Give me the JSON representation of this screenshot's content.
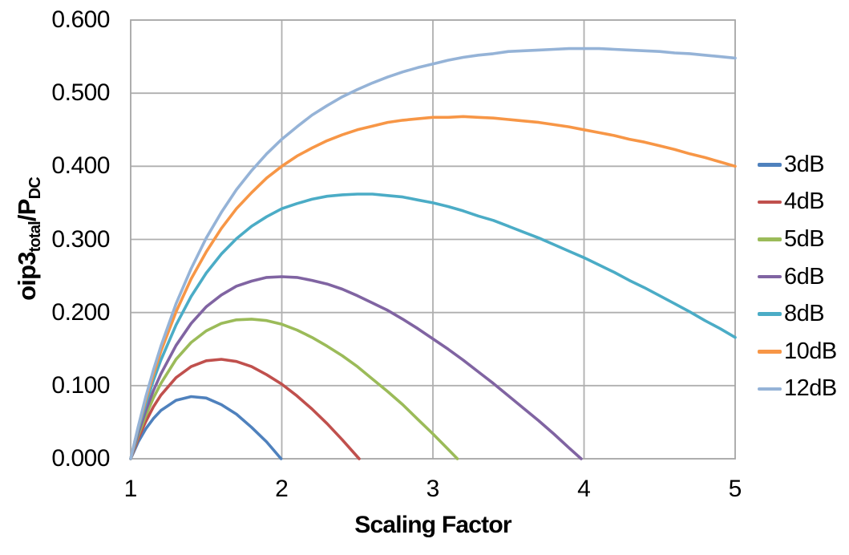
{
  "chart_data": {
    "type": "line",
    "title": "",
    "xlabel": "Scaling Factor",
    "ylabel": "oip3_total/P_DC",
    "ylabel_parts": [
      {
        "text": "oip3",
        "sub": false
      },
      {
        "text": "total",
        "sub": true
      },
      {
        "text": "/P",
        "sub": false
      },
      {
        "text": "DC",
        "sub": true
      }
    ],
    "xlim": [
      1,
      5
    ],
    "ylim": [
      0,
      0.6
    ],
    "x_ticks": [
      1,
      2,
      3,
      4,
      5
    ],
    "x_tick_labels": [
      "1",
      "2",
      "3",
      "4",
      "5"
    ],
    "y_ticks": [
      0,
      0.1,
      0.2,
      0.3,
      0.4,
      0.5,
      0.6
    ],
    "y_tick_labels": [
      "0.000",
      "0.100",
      "0.200",
      "0.300",
      "0.400",
      "0.500",
      "0.600"
    ],
    "grid": true,
    "legend_position": "right",
    "series": [
      {
        "name": "3dB",
        "color": "#4F81BD",
        "points": [
          [
            1,
            0
          ],
          [
            1.05,
            0.023
          ],
          [
            1.1,
            0.041
          ],
          [
            1.15,
            0.055
          ],
          [
            1.2,
            0.066
          ],
          [
            1.3,
            0.08
          ],
          [
            1.4,
            0.085
          ],
          [
            1.5,
            0.083
          ],
          [
            1.6,
            0.074
          ],
          [
            1.7,
            0.061
          ],
          [
            1.8,
            0.043
          ],
          [
            1.9,
            0.023
          ],
          [
            1.995,
            0
          ]
        ]
      },
      {
        "name": "4dB",
        "color": "#C0504D",
        "points": [
          [
            1,
            0
          ],
          [
            1.05,
            0.028
          ],
          [
            1.1,
            0.051
          ],
          [
            1.15,
            0.071
          ],
          [
            1.2,
            0.087
          ],
          [
            1.3,
            0.111
          ],
          [
            1.4,
            0.126
          ],
          [
            1.5,
            0.134
          ],
          [
            1.6,
            0.136
          ],
          [
            1.7,
            0.133
          ],
          [
            1.8,
            0.126
          ],
          [
            1.9,
            0.115
          ],
          [
            2,
            0.102
          ],
          [
            2.1,
            0.086
          ],
          [
            2.2,
            0.068
          ],
          [
            2.3,
            0.048
          ],
          [
            2.4,
            0.026
          ],
          [
            2.512,
            0
          ]
        ]
      },
      {
        "name": "5dB",
        "color": "#9BBB59",
        "points": [
          [
            1,
            0
          ],
          [
            1.05,
            0.032
          ],
          [
            1.1,
            0.059
          ],
          [
            1.15,
            0.083
          ],
          [
            1.2,
            0.103
          ],
          [
            1.3,
            0.136
          ],
          [
            1.4,
            0.159
          ],
          [
            1.5,
            0.175
          ],
          [
            1.6,
            0.185
          ],
          [
            1.7,
            0.19
          ],
          [
            1.8,
            0.191
          ],
          [
            1.9,
            0.189
          ],
          [
            2,
            0.184
          ],
          [
            2.1,
            0.176
          ],
          [
            2.2,
            0.166
          ],
          [
            2.3,
            0.154
          ],
          [
            2.4,
            0.141
          ],
          [
            2.5,
            0.126
          ],
          [
            2.6,
            0.109
          ],
          [
            2.7,
            0.092
          ],
          [
            2.8,
            0.074
          ],
          [
            2.9,
            0.054
          ],
          [
            3,
            0.034
          ],
          [
            3.1,
            0.013
          ],
          [
            3.162,
            0
          ]
        ]
      },
      {
        "name": "6dB",
        "color": "#8064A2",
        "points": [
          [
            1,
            0
          ],
          [
            1.05,
            0.035
          ],
          [
            1.1,
            0.066
          ],
          [
            1.15,
            0.093
          ],
          [
            1.2,
            0.116
          ],
          [
            1.3,
            0.155
          ],
          [
            1.4,
            0.185
          ],
          [
            1.5,
            0.208
          ],
          [
            1.6,
            0.224
          ],
          [
            1.7,
            0.236
          ],
          [
            1.8,
            0.243
          ],
          [
            1.9,
            0.248
          ],
          [
            2,
            0.249
          ],
          [
            2.1,
            0.248
          ],
          [
            2.2,
            0.244
          ],
          [
            2.3,
            0.239
          ],
          [
            2.4,
            0.232
          ],
          [
            2.5,
            0.223
          ],
          [
            2.6,
            0.213
          ],
          [
            2.7,
            0.203
          ],
          [
            2.8,
            0.191
          ],
          [
            2.9,
            0.178
          ],
          [
            3,
            0.164
          ],
          [
            3.1,
            0.15
          ],
          [
            3.2,
            0.135
          ],
          [
            3.3,
            0.119
          ],
          [
            3.4,
            0.103
          ],
          [
            3.5,
            0.086
          ],
          [
            3.6,
            0.069
          ],
          [
            3.7,
            0.052
          ],
          [
            3.8,
            0.034
          ],
          [
            3.9,
            0.015
          ],
          [
            3.981,
            0
          ]
        ]
      },
      {
        "name": "8dB",
        "color": "#4BACC6",
        "points": [
          [
            1,
            0
          ],
          [
            1.05,
            0.04
          ],
          [
            1.1,
            0.075
          ],
          [
            1.15,
            0.107
          ],
          [
            1.2,
            0.135
          ],
          [
            1.3,
            0.183
          ],
          [
            1.4,
            0.222
          ],
          [
            1.5,
            0.254
          ],
          [
            1.6,
            0.28
          ],
          [
            1.7,
            0.301
          ],
          [
            1.8,
            0.318
          ],
          [
            1.9,
            0.331
          ],
          [
            2,
            0.342
          ],
          [
            2.1,
            0.349
          ],
          [
            2.2,
            0.355
          ],
          [
            2.3,
            0.359
          ],
          [
            2.4,
            0.361
          ],
          [
            2.5,
            0.362
          ],
          [
            2.6,
            0.362
          ],
          [
            2.7,
            0.36
          ],
          [
            2.8,
            0.358
          ],
          [
            2.9,
            0.354
          ],
          [
            3,
            0.35
          ],
          [
            3.1,
            0.345
          ],
          [
            3.2,
            0.339
          ],
          [
            3.3,
            0.332
          ],
          [
            3.4,
            0.326
          ],
          [
            3.5,
            0.318
          ],
          [
            3.6,
            0.31
          ],
          [
            3.7,
            0.302
          ],
          [
            3.8,
            0.293
          ],
          [
            3.9,
            0.284
          ],
          [
            4,
            0.275
          ],
          [
            4.1,
            0.265
          ],
          [
            4.2,
            0.255
          ],
          [
            4.3,
            0.244
          ],
          [
            4.4,
            0.234
          ],
          [
            4.5,
            0.223
          ],
          [
            4.6,
            0.212
          ],
          [
            4.7,
            0.201
          ],
          [
            4.8,
            0.189
          ],
          [
            4.9,
            0.178
          ],
          [
            5,
            0.166
          ]
        ]
      },
      {
        "name": "10dB",
        "color": "#F79646",
        "points": [
          [
            1,
            0
          ],
          [
            1.05,
            0.043
          ],
          [
            1.1,
            0.081
          ],
          [
            1.15,
            0.115
          ],
          [
            1.2,
            0.147
          ],
          [
            1.3,
            0.201
          ],
          [
            1.4,
            0.246
          ],
          [
            1.5,
            0.283
          ],
          [
            1.6,
            0.315
          ],
          [
            1.7,
            0.342
          ],
          [
            1.8,
            0.364
          ],
          [
            1.9,
            0.384
          ],
          [
            2,
            0.4
          ],
          [
            2.1,
            0.414
          ],
          [
            2.2,
            0.425
          ],
          [
            2.3,
            0.435
          ],
          [
            2.4,
            0.443
          ],
          [
            2.5,
            0.45
          ],
          [
            2.6,
            0.455
          ],
          [
            2.7,
            0.46
          ],
          [
            2.8,
            0.463
          ],
          [
            2.9,
            0.465
          ],
          [
            3,
            0.467
          ],
          [
            3.1,
            0.467
          ],
          [
            3.2,
            0.468
          ],
          [
            3.3,
            0.467
          ],
          [
            3.4,
            0.466
          ],
          [
            3.5,
            0.464
          ],
          [
            3.6,
            0.462
          ],
          [
            3.7,
            0.46
          ],
          [
            3.8,
            0.457
          ],
          [
            3.9,
            0.454
          ],
          [
            4,
            0.45
          ],
          [
            4.1,
            0.446
          ],
          [
            4.2,
            0.442
          ],
          [
            4.3,
            0.437
          ],
          [
            4.4,
            0.433
          ],
          [
            4.5,
            0.428
          ],
          [
            4.6,
            0.423
          ],
          [
            4.7,
            0.417
          ],
          [
            4.8,
            0.412
          ],
          [
            4.9,
            0.406
          ],
          [
            5,
            0.4
          ]
        ]
      },
      {
        "name": "12dB",
        "color": "#95B3D7",
        "points": [
          [
            1,
            0
          ],
          [
            1.05,
            0.044
          ],
          [
            1.1,
            0.085
          ],
          [
            1.15,
            0.121
          ],
          [
            1.2,
            0.154
          ],
          [
            1.3,
            0.212
          ],
          [
            1.4,
            0.26
          ],
          [
            1.5,
            0.302
          ],
          [
            1.6,
            0.337
          ],
          [
            1.7,
            0.368
          ],
          [
            1.8,
            0.394
          ],
          [
            1.9,
            0.417
          ],
          [
            2,
            0.437
          ],
          [
            2.1,
            0.454
          ],
          [
            2.2,
            0.47
          ],
          [
            2.3,
            0.483
          ],
          [
            2.4,
            0.495
          ],
          [
            2.5,
            0.505
          ],
          [
            2.6,
            0.514
          ],
          [
            2.7,
            0.522
          ],
          [
            2.8,
            0.529
          ],
          [
            2.9,
            0.535
          ],
          [
            3,
            0.54
          ],
          [
            3.1,
            0.545
          ],
          [
            3.2,
            0.549
          ],
          [
            3.3,
            0.552
          ],
          [
            3.4,
            0.554
          ],
          [
            3.5,
            0.557
          ],
          [
            3.6,
            0.558
          ],
          [
            3.7,
            0.559
          ],
          [
            3.8,
            0.56
          ],
          [
            3.9,
            0.561
          ],
          [
            4,
            0.561
          ],
          [
            4.1,
            0.561
          ],
          [
            4.2,
            0.56
          ],
          [
            4.3,
            0.559
          ],
          [
            4.4,
            0.558
          ],
          [
            4.5,
            0.557
          ],
          [
            4.6,
            0.555
          ],
          [
            4.7,
            0.554
          ],
          [
            4.8,
            0.552
          ],
          [
            4.9,
            0.55
          ],
          [
            5,
            0.548
          ]
        ]
      }
    ]
  },
  "colors": {
    "gridline": "#AFAFAF",
    "plot_border": "#A6A6A6",
    "text": "#000000",
    "background": "#FFFFFF"
  }
}
